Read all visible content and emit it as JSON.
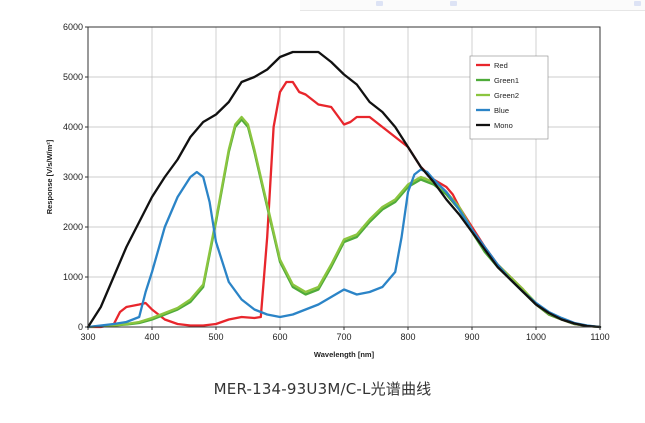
{
  "caption": "MER-134-93U3M/C-L光谱曲线",
  "chart_data": {
    "type": "line",
    "xlabel": "Wavelength [nm]",
    "ylabel": "Response [V/s/W/m²]",
    "xlim": [
      300,
      1100
    ],
    "ylim": [
      0,
      6000
    ],
    "xticks": [
      300,
      400,
      500,
      600,
      700,
      800,
      900,
      1000,
      1100
    ],
    "yticks": [
      0,
      1000,
      2000,
      3000,
      4000,
      5000,
      6000
    ],
    "grid": true,
    "legend_position": "top-right",
    "series": [
      {
        "name": "Red",
        "color": "#e8262c",
        "x": [
          300,
          320,
          340,
          350,
          360,
          380,
          390,
          400,
          420,
          440,
          460,
          480,
          500,
          520,
          540,
          560,
          570,
          580,
          590,
          600,
          610,
          620,
          630,
          640,
          660,
          680,
          700,
          710,
          720,
          730,
          740,
          760,
          780,
          800,
          820,
          840,
          860,
          870,
          880,
          900,
          920,
          940,
          960,
          980,
          1000,
          1020,
          1040,
          1060,
          1080,
          1100
        ],
        "y": [
          0,
          0,
          50,
          300,
          400,
          450,
          480,
          350,
          150,
          60,
          30,
          30,
          60,
          150,
          200,
          180,
          200,
          1800,
          4000,
          4700,
          4900,
          4900,
          4700,
          4650,
          4450,
          4400,
          4050,
          4100,
          4200,
          4200,
          4200,
          4000,
          3800,
          3600,
          3200,
          2950,
          2800,
          2650,
          2400,
          2000,
          1600,
          1250,
          1000,
          750,
          450,
          250,
          150,
          60,
          20,
          0
        ]
      },
      {
        "name": "Green1",
        "color": "#4fab3a",
        "x": [
          300,
          320,
          340,
          360,
          380,
          400,
          420,
          440,
          460,
          480,
          500,
          520,
          530,
          540,
          550,
          560,
          580,
          600,
          620,
          640,
          660,
          680,
          700,
          720,
          740,
          760,
          780,
          800,
          820,
          840,
          860,
          880,
          900,
          920,
          940,
          960,
          980,
          1000,
          1020,
          1040,
          1060,
          1080,
          1100
        ],
        "y": [
          0,
          20,
          30,
          50,
          80,
          150,
          250,
          350,
          500,
          800,
          2100,
          3500,
          4000,
          4150,
          4000,
          3500,
          2400,
          1300,
          800,
          650,
          750,
          1200,
          1700,
          1800,
          2100,
          2350,
          2500,
          2800,
          2950,
          2850,
          2650,
          2350,
          1900,
          1500,
          1200,
          950,
          700,
          450,
          250,
          150,
          60,
          20,
          0
        ]
      },
      {
        "name": "Green2",
        "color": "#8bc53f",
        "x": [
          300,
          320,
          340,
          360,
          380,
          400,
          420,
          440,
          460,
          480,
          500,
          520,
          530,
          540,
          550,
          560,
          580,
          600,
          620,
          640,
          660,
          680,
          700,
          720,
          740,
          760,
          780,
          800,
          820,
          840,
          860,
          880,
          900,
          920,
          940,
          960,
          980,
          1000,
          1020,
          1040,
          1060,
          1080,
          1100
        ],
        "y": [
          0,
          20,
          30,
          60,
          100,
          180,
          280,
          380,
          550,
          850,
          2150,
          3550,
          4050,
          4200,
          4050,
          3550,
          2450,
          1350,
          850,
          700,
          800,
          1250,
          1750,
          1850,
          2150,
          2400,
          2550,
          2850,
          3000,
          2900,
          2700,
          2400,
          1950,
          1550,
          1250,
          1000,
          750,
          480,
          270,
          160,
          70,
          25,
          0
        ]
      },
      {
        "name": "Blue",
        "color": "#2b84c7",
        "x": [
          300,
          320,
          340,
          360,
          380,
          390,
          400,
          420,
          440,
          460,
          470,
          480,
          490,
          500,
          520,
          540,
          560,
          580,
          600,
          620,
          640,
          660,
          680,
          700,
          720,
          740,
          760,
          780,
          790,
          800,
          810,
          820,
          830,
          840,
          860,
          880,
          900,
          920,
          940,
          960,
          980,
          1000,
          1020,
          1040,
          1060,
          1080,
          1100
        ],
        "y": [
          0,
          30,
          60,
          100,
          200,
          700,
          1100,
          2000,
          2600,
          3000,
          3100,
          3000,
          2500,
          1700,
          900,
          550,
          350,
          250,
          200,
          250,
          350,
          450,
          600,
          750,
          650,
          700,
          800,
          1100,
          1800,
          2700,
          3050,
          3150,
          3100,
          2950,
          2700,
          2350,
          1950,
          1600,
          1250,
          950,
          700,
          480,
          300,
          180,
          80,
          30,
          0
        ]
      },
      {
        "name": "Mono",
        "color": "#111111",
        "x": [
          300,
          320,
          340,
          360,
          380,
          400,
          420,
          440,
          460,
          480,
          500,
          520,
          540,
          560,
          580,
          600,
          620,
          640,
          660,
          680,
          700,
          720,
          740,
          760,
          780,
          800,
          820,
          840,
          860,
          880,
          900,
          920,
          940,
          960,
          980,
          1000,
          1020,
          1040,
          1060,
          1080,
          1100
        ],
        "y": [
          0,
          400,
          1000,
          1600,
          2100,
          2600,
          3000,
          3350,
          3800,
          4100,
          4250,
          4500,
          4900,
          5000,
          5150,
          5400,
          5500,
          5500,
          5500,
          5300,
          5050,
          4850,
          4500,
          4300,
          4000,
          3600,
          3200,
          2900,
          2550,
          2250,
          1900,
          1550,
          1200,
          950,
          700,
          450,
          280,
          150,
          70,
          20,
          0
        ]
      }
    ]
  }
}
